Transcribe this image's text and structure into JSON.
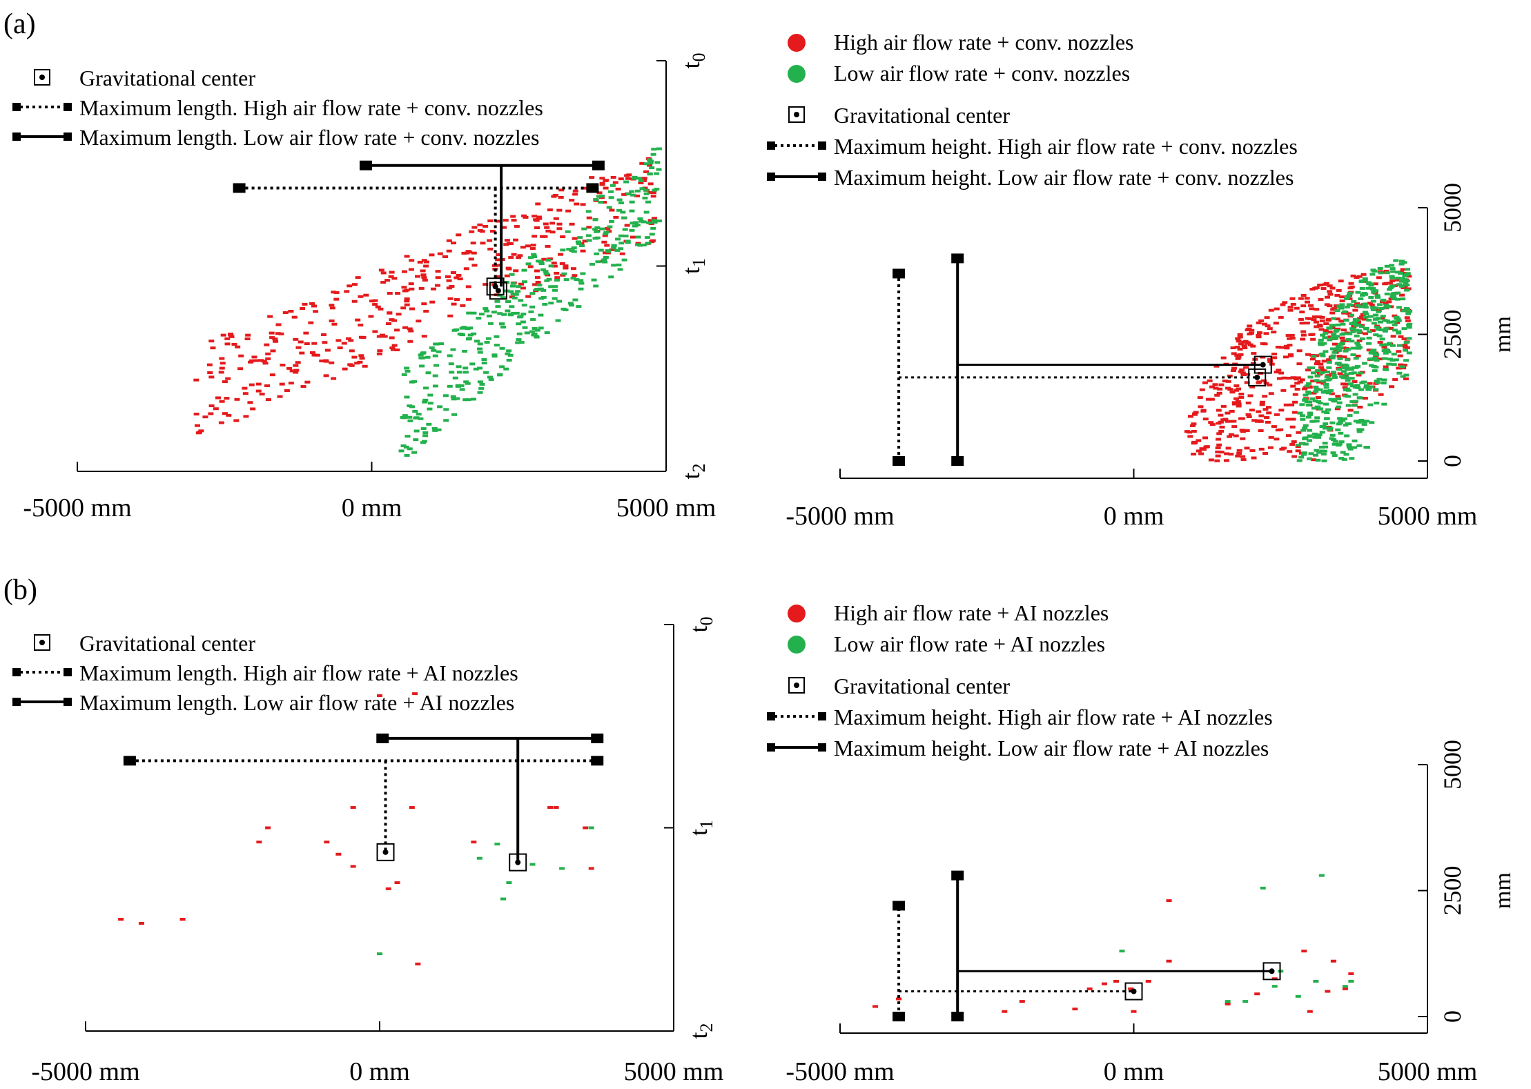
{
  "figure": {
    "panel_labels": [
      "(a)",
      "(b)"
    ]
  },
  "chart_data": [
    {
      "id": "a-left",
      "panel": "(a)",
      "type": "scatter",
      "x_tick_labels": [
        "-5000 mm",
        "0 mm",
        "5000 mm"
      ],
      "y_tick_labels": [
        "t0",
        "t1",
        "t2"
      ],
      "x_ticks": [
        -5000,
        0,
        5000
      ],
      "y_ticks": [
        0,
        1,
        2
      ],
      "xlim": [
        -5000,
        5000
      ],
      "ylim": [
        2,
        0
      ],
      "legend": [
        {
          "symbol": "center",
          "label": "Gravitational center"
        },
        {
          "symbol": "dotted",
          "label": "Maximum length. High air flow rate + conv. nozzles"
        },
        {
          "symbol": "solid",
          "label": "Maximum length. Low air flow rate + conv. nozzles"
        }
      ],
      "series": [
        {
          "color": "#e41a1c",
          "region": {
            "x": [
              -3000,
              4800
            ],
            "y": [
              0.66,
              1.62
            ]
          },
          "count": 420
        },
        {
          "color": "#23b14d",
          "region": {
            "x": [
              500,
              4900
            ],
            "y": [
              0.62,
              1.74
            ]
          },
          "count": 360
        }
      ],
      "centers": [
        {
          "x": 2100,
          "y": 1.1,
          "series": "high"
        },
        {
          "x": 2150,
          "y": 1.12,
          "series": "low"
        }
      ],
      "max_lines": [
        {
          "style": "dotted",
          "x": [
            -2250,
            3750
          ],
          "y": 0.62,
          "center_x": 2100,
          "center_y": 1.1
        },
        {
          "style": "solid",
          "x": [
            -100,
            3850
          ],
          "y": 0.51,
          "center_x": 2200,
          "center_y": 1.1
        }
      ]
    },
    {
      "id": "a-right",
      "panel": "(a)",
      "type": "scatter",
      "x_tick_labels": [
        "-5000 mm",
        "0 mm",
        "5000 mm"
      ],
      "y_tick_labels": [
        "5000",
        "2500",
        "0"
      ],
      "y_axis_label": "mm",
      "x_ticks": [
        -5000,
        0,
        5000
      ],
      "y_ticks": [
        5000,
        2500,
        0
      ],
      "xlim": [
        -5000,
        5000
      ],
      "ylim": [
        0,
        5000
      ],
      "legend": [
        {
          "symbol": "dot-red",
          "label": "High air flow rate + conv. nozzles"
        },
        {
          "symbol": "dot-green",
          "label": "Low air flow rate + conv. nozzles"
        },
        {
          "symbol": "center",
          "label": "Gravitational center"
        },
        {
          "symbol": "dotted",
          "label": "Maximum height. High air flow rate + conv. nozzles"
        },
        {
          "symbol": "solid",
          "label": "Maximum height. Low air flow rate + conv. nozzles"
        }
      ],
      "series": [
        {
          "color": "#e41a1c",
          "region": {
            "x": [
              -2300,
              4700
            ],
            "y": [
              0,
              3800
            ]
          },
          "count": 520
        },
        {
          "color": "#23b14d",
          "region": {
            "x": [
              1200,
              4700
            ],
            "y": [
              0,
              4000
            ]
          },
          "count": 480
        }
      ],
      "centers": [
        {
          "x": 2100,
          "y": 1650,
          "series": "high"
        },
        {
          "x": 2200,
          "y": 1900,
          "series": "low"
        }
      ],
      "max_lines": [
        {
          "style": "dotted",
          "x": -4000,
          "y": [
            0,
            3700
          ],
          "center_x": 2100,
          "center_y": 1650
        },
        {
          "style": "solid",
          "x": -3000,
          "y": [
            0,
            4000
          ],
          "center_x": 2200,
          "center_y": 1900
        }
      ]
    },
    {
      "id": "b-left",
      "panel": "(b)",
      "type": "scatter",
      "x_tick_labels": [
        "-5000 mm",
        "0 mm",
        "5000 mm"
      ],
      "y_tick_labels": [
        "t0",
        "t1",
        "t2"
      ],
      "x_ticks": [
        -5000,
        0,
        5000
      ],
      "y_ticks": [
        0,
        1,
        2
      ],
      "xlim": [
        -5000,
        5000
      ],
      "ylim": [
        2,
        0
      ],
      "legend": [
        {
          "symbol": "center",
          "label": "Gravitational center"
        },
        {
          "symbol": "dotted",
          "label": "Maximum length. High air flow rate + AI nozzles"
        },
        {
          "symbol": "solid",
          "label": "Maximum length. Low air flow rate + AI nozzles"
        }
      ],
      "series": [
        {
          "color": "#e41a1c",
          "points": [
            [
              -4400,
              1.45
            ],
            [
              -4050,
              1.47
            ],
            [
              -3350,
              1.45
            ],
            [
              -2050,
              1.07
            ],
            [
              -1900,
              1.0
            ],
            [
              -900,
              1.07
            ],
            [
              -700,
              1.13
            ],
            [
              -450,
              1.19
            ],
            [
              -450,
              0.9
            ],
            [
              0,
              0.35
            ],
            [
              600,
              0.34
            ],
            [
              550,
              0.9
            ],
            [
              150,
              1.3
            ],
            [
              300,
              1.27
            ],
            [
              650,
              1.67
            ],
            [
              1600,
              1.07
            ],
            [
              2900,
              0.9
            ],
            [
              3000,
              0.9
            ],
            [
              3500,
              1.0
            ],
            [
              3600,
              1.2
            ]
          ]
        },
        {
          "color": "#23b14d",
          "points": [
            [
              0,
              1.62
            ],
            [
              1700,
              1.15
            ],
            [
              2000,
              1.08
            ],
            [
              2200,
              1.27
            ],
            [
              2600,
              1.18
            ],
            [
              3100,
              1.2
            ],
            [
              3600,
              1.0
            ],
            [
              2100,
              1.35
            ]
          ]
        }
      ],
      "centers": [
        {
          "x": 100,
          "y": 1.12,
          "series": "high"
        },
        {
          "x": 2350,
          "y": 1.17,
          "series": "low"
        }
      ],
      "max_lines": [
        {
          "style": "dotted",
          "x": [
            -4250,
            3700
          ],
          "y": 0.67,
          "center_x": 100,
          "center_y": 1.12
        },
        {
          "style": "solid",
          "x": [
            50,
            3700
          ],
          "y": 0.56,
          "center_x": 2350,
          "center_y": 1.17
        }
      ]
    },
    {
      "id": "b-right",
      "panel": "(b)",
      "type": "scatter",
      "x_tick_labels": [
        "-5000 mm",
        "0 mm",
        "5000 mm"
      ],
      "y_tick_labels": [
        "5000",
        "2500",
        "0"
      ],
      "y_axis_label": "mm",
      "x_ticks": [
        -5000,
        0,
        5000
      ],
      "y_ticks": [
        5000,
        2500,
        0
      ],
      "xlim": [
        -5000,
        5000
      ],
      "ylim": [
        0,
        5000
      ],
      "legend": [
        {
          "symbol": "dot-red",
          "label": "High air flow rate + AI nozzles"
        },
        {
          "symbol": "dot-green",
          "label": "Low air flow rate + AI nozzles"
        },
        {
          "symbol": "center",
          "label": "Gravitational center"
        },
        {
          "symbol": "dotted",
          "label": "Maximum height. High air flow rate + AI nozzles"
        },
        {
          "symbol": "solid",
          "label": "Maximum height. Low air flow rate + AI nozzles"
        }
      ],
      "series": [
        {
          "color": "#e41a1c",
          "points": [
            [
              -4400,
              200
            ],
            [
              -4000,
              350
            ],
            [
              -2200,
              100
            ],
            [
              -1900,
              300
            ],
            [
              -1000,
              150
            ],
            [
              -750,
              550
            ],
            [
              -500,
              650
            ],
            [
              -300,
              700
            ],
            [
              -50,
              550
            ],
            [
              0,
              100
            ],
            [
              250,
              700
            ],
            [
              600,
              1100
            ],
            [
              600,
              2300
            ],
            [
              1600,
              250
            ],
            [
              2100,
              450
            ],
            [
              2400,
              750
            ],
            [
              2900,
              1300
            ],
            [
              3000,
              100
            ],
            [
              3300,
              500
            ],
            [
              3600,
              550
            ],
            [
              3700,
              850
            ],
            [
              3400,
              1100
            ]
          ]
        },
        {
          "color": "#23b14d",
          "points": [
            [
              -200,
              1300
            ],
            [
              1600,
              300
            ],
            [
              1900,
              300
            ],
            [
              2200,
              2550
            ],
            [
              2400,
              600
            ],
            [
              2500,
              900
            ],
            [
              2800,
              400
            ],
            [
              3100,
              700
            ],
            [
              3200,
              2800
            ],
            [
              3600,
              600
            ],
            [
              3700,
              700
            ]
          ]
        }
      ],
      "centers": [
        {
          "x": 0,
          "y": 500,
          "series": "high"
        },
        {
          "x": 2350,
          "y": 900,
          "series": "low"
        }
      ],
      "max_lines": [
        {
          "style": "dotted",
          "x": -4000,
          "y": [
            0,
            2200
          ],
          "center_x": 0,
          "center_y": 500
        },
        {
          "style": "solid",
          "x": -3000,
          "y": [
            0,
            2800
          ],
          "center_x": 2350,
          "center_y": 900
        }
      ]
    }
  ]
}
